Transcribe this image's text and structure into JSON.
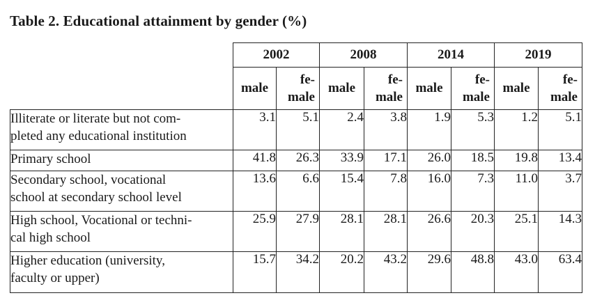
{
  "title": "Table 2. Educational attainment by gender (%)",
  "table": {
    "years": [
      "2002",
      "2008",
      "2014",
      "2019"
    ],
    "male_label": "male",
    "female_label_line1": "fe-",
    "female_label_line2": "male",
    "rows": [
      {
        "label_line1": "Illiterate or literate but not com-",
        "label_line2": "pleted any educational institution",
        "values": [
          "3.1",
          "5.1",
          "2.4",
          "3.8",
          "1.9",
          "5.3",
          "1.2",
          "5.1"
        ]
      },
      {
        "label_line1": "Primary school",
        "label_line2": "",
        "values": [
          "41.8",
          "26.3",
          "33.9",
          "17.1",
          "26.0",
          "18.5",
          "19.8",
          "13.4"
        ]
      },
      {
        "label_line1": "Secondary school, vocational",
        "label_line2": "school at secondary school level",
        "values": [
          "13.6",
          "6.6",
          "15.4",
          "7.8",
          "16.0",
          "7.3",
          "11.0",
          "3.7"
        ]
      },
      {
        "label_line1": "High school, Vocational or techni-",
        "label_line2": "cal high school",
        "values": [
          "25.9",
          "27.9",
          "28.1",
          "28.1",
          "26.6",
          "20.3",
          "25.1",
          "14.3"
        ]
      },
      {
        "label_line1": "Higher education (university,",
        "label_line2": "faculty or upper)",
        "values": [
          "15.7",
          "34.2",
          "20.2",
          "43.2",
          "29.6",
          "48.8",
          "43.0",
          "63.4"
        ]
      }
    ]
  }
}
